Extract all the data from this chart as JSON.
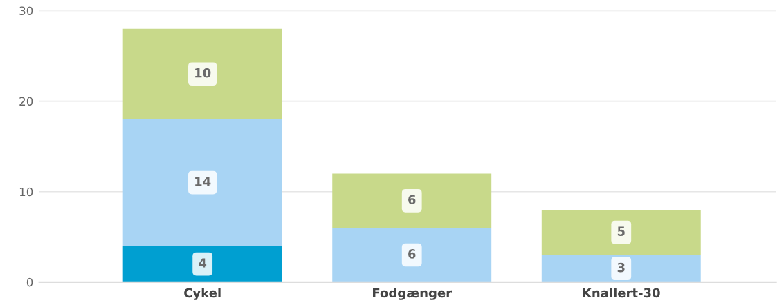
{
  "chart_data": {
    "type": "bar",
    "stacked": true,
    "categories": [
      "Cykel",
      "Fodgænger",
      "Knallert-30"
    ],
    "series": [
      {
        "color": "#009fd1",
        "values": [
          4,
          null,
          null
        ]
      },
      {
        "color": "#a8d4f4",
        "values": [
          14,
          6,
          3
        ]
      },
      {
        "color": "#c8d98a",
        "values": [
          10,
          6,
          5
        ]
      }
    ],
    "ylim": [
      0,
      30
    ],
    "yticks": [
      0,
      10,
      20,
      30
    ],
    "grid": "y",
    "data_labels": true
  }
}
